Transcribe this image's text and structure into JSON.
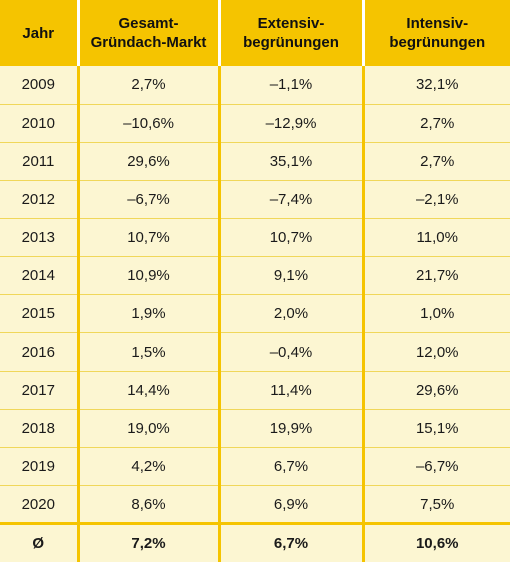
{
  "colors": {
    "header_background": "#f5c400",
    "body_background": "#fcf6d2",
    "divider": "#f5c400"
  },
  "chart_data": {
    "type": "table",
    "columns": [
      "Jahr",
      "Gesamt-\nGründach-Markt",
      "Extensiv-\nbegrünungen",
      "Intensiv-\nbegrünungen"
    ],
    "rows": [
      [
        "2009",
        "2,7%",
        "–1,1%",
        "32,1%"
      ],
      [
        "2010",
        "–10,6%",
        "–12,9%",
        "2,7%"
      ],
      [
        "2011",
        "29,6%",
        "35,1%",
        "2,7%"
      ],
      [
        "2012",
        "–6,7%",
        "–7,4%",
        "–2,1%"
      ],
      [
        "2013",
        "10,7%",
        "10,7%",
        "11,0%"
      ],
      [
        "2014",
        "10,9%",
        "9,1%",
        "21,7%"
      ],
      [
        "2015",
        "1,9%",
        "2,0%",
        "1,0%"
      ],
      [
        "2016",
        "1,5%",
        "–0,4%",
        "12,0%"
      ],
      [
        "2017",
        "14,4%",
        "11,4%",
        "29,6%"
      ],
      [
        "2018",
        "19,0%",
        "19,9%",
        "15,1%"
      ],
      [
        "2019",
        "4,2%",
        "6,7%",
        "–6,7%"
      ],
      [
        "2020",
        "8,6%",
        "6,9%",
        "7,5%"
      ]
    ],
    "summary_row": [
      "Ø",
      "7,2%",
      "6,7%",
      "10,6%"
    ]
  }
}
